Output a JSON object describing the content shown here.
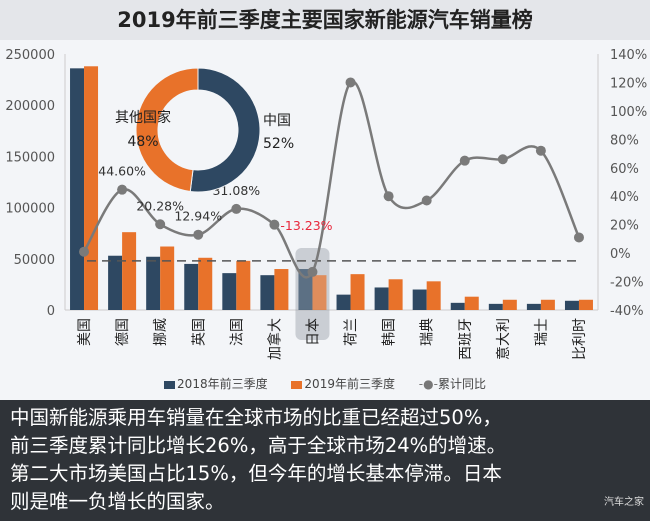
{
  "chart_data": {
    "type": "bar",
    "title": "2019年前三季度主要国家新能源汽车销量榜",
    "categories": [
      "美国",
      "德国",
      "挪威",
      "英国",
      "法国",
      "加拿大",
      "日本",
      "荷兰",
      "韩国",
      "瑞典",
      "西班牙",
      "意大利",
      "瑞士",
      "比利时"
    ],
    "series": [
      {
        "name": "2018年前三季度",
        "type": "bar",
        "axis": "left",
        "color": "#2e4862",
        "values": [
          236000,
          53000,
          52000,
          45000,
          36000,
          34000,
          40000,
          15000,
          22000,
          20000,
          7000,
          6000,
          6000,
          9000
        ]
      },
      {
        "name": "2019年前三季度",
        "type": "bar",
        "axis": "left",
        "color": "#e8722a",
        "values": [
          238000,
          76000,
          62000,
          51000,
          48000,
          40000,
          34000,
          35000,
          30000,
          28000,
          13000,
          10000,
          10000,
          10000
        ]
      },
      {
        "name": "累计同比",
        "type": "line",
        "axis": "right",
        "color": "#7a7a7a",
        "values": [
          1,
          44.6,
          20.28,
          12.94,
          31.08,
          20,
          -13.23,
          120,
          40,
          37,
          65,
          66,
          72,
          11
        ]
      }
    ],
    "data_labels": [
      {
        "index": 1,
        "text": "44.60%",
        "color": "#333"
      },
      {
        "index": 2,
        "text": "20.28%",
        "color": "#333"
      },
      {
        "index": 3,
        "text": "12.94%",
        "color": "#333"
      },
      {
        "index": 4,
        "text": "31.08%",
        "color": "#333"
      },
      {
        "index": 6,
        "text": "-13.23%",
        "color": "#e8283c"
      }
    ],
    "left_axis": {
      "ylim": [
        0,
        250000
      ],
      "ticks": [
        "0",
        "50000",
        "100000",
        "150000",
        "200000",
        "250000"
      ]
    },
    "right_axis": {
      "ylim": [
        -40,
        140
      ],
      "ticks": [
        "-40%",
        "-20%",
        "0%",
        "20%",
        "40%",
        "60%",
        "80%",
        "100%",
        "120%",
        "140%"
      ]
    },
    "reference_line": 48000,
    "highlight_category": "日本",
    "inset_pie": {
      "type": "pie",
      "slices": [
        {
          "label": "中国",
          "value": 52,
          "text": "52%",
          "color": "#2e4862"
        },
        {
          "label": "其他国家",
          "value": 48,
          "text": "48%",
          "color": "#e8722a"
        }
      ]
    },
    "legend": [
      "2018年前三季度",
      "2019年前三季度",
      "累计同比"
    ],
    "legend_placement": "bottom"
  },
  "note": {
    "lines": [
      "中国新能源乘用车销量在全球市场的比重已经超过50%，",
      "前三季度累计同比增长26%，高于全球市场24%的增速。",
      "第二大市场美国占比15%，但今年的增长基本停滞。日本",
      "则是唯一负增长的国家。"
    ],
    "brand": "汽车之家"
  }
}
